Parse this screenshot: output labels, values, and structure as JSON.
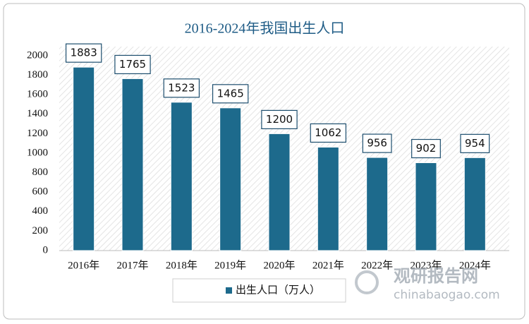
{
  "chart_data": {
    "type": "bar",
    "title": "2016-2024年我国出生人口",
    "categories": [
      "2016年",
      "2017年",
      "2018年",
      "2019年",
      "2020年",
      "2021年",
      "2022年",
      "2023年",
      "2024年"
    ],
    "series": [
      {
        "name": "出生人口（万人）",
        "color": "#1d6a8c",
        "values": [
          1883,
          1765,
          1523,
          1465,
          1200,
          1062,
          956,
          902,
          954
        ]
      }
    ],
    "ylim": [
      0,
      2000
    ],
    "yticks": [
      0,
      200,
      400,
      600,
      800,
      1000,
      1200,
      1400,
      1600,
      1800,
      2000
    ],
    "grid": false,
    "legend": "bottom",
    "watermark": {
      "name": "观研报告网",
      "url": "chinabaogao.com"
    }
  }
}
